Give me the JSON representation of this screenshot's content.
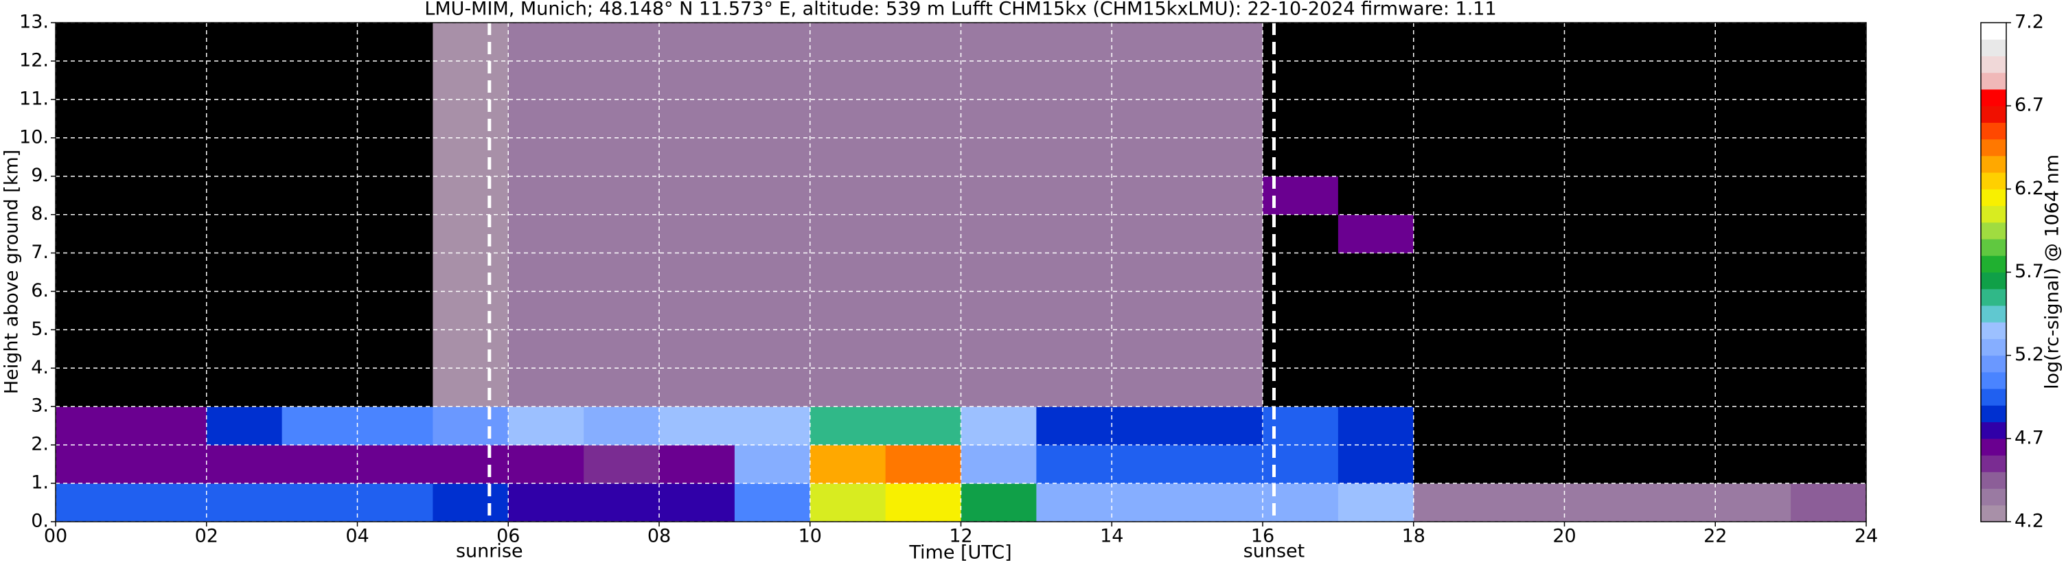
{
  "chart_data": {
    "type": "heatmap",
    "title": "LMU-MIM, Munich; 48.148° N 11.573° E, altitude: 539 m    Lufft CHM15kx (CHM15kxLMU): 22-10-2024    firmware: 1.11",
    "x_label": "Time [UTC]",
    "y_label": "Height above ground [km]",
    "x": [
      0,
      1,
      2,
      3,
      4,
      5,
      6,
      7,
      8,
      9,
      10,
      11,
      12,
      13,
      14,
      15,
      16,
      17,
      18,
      19,
      20,
      21,
      22,
      23,
      24
    ],
    "y": [
      0,
      1,
      2,
      3,
      4,
      5,
      6,
      7,
      8,
      9,
      10,
      11,
      12,
      13
    ],
    "z": [
      [
        4.9,
        4.9,
        4.9,
        4.9,
        4.9,
        4.8,
        4.7,
        4.7,
        4.7,
        5.0,
        6.0,
        6.1,
        5.6,
        5.2,
        5.2,
        5.2,
        5.2,
        5.3,
        4.3,
        4.3,
        4.3,
        4.3,
        4.3,
        4.4
      ],
      [
        4.6,
        4.6,
        4.6,
        4.6,
        4.6,
        4.6,
        4.6,
        4.5,
        4.6,
        5.2,
        6.3,
        6.4,
        5.2,
        4.9,
        4.9,
        4.9,
        4.9,
        4.8,
        4.0,
        4.0,
        4.0,
        4.0,
        4.0,
        4.0
      ],
      [
        4.6,
        4.6,
        4.8,
        5.0,
        5.0,
        5.1,
        5.3,
        5.2,
        5.3,
        5.3,
        5.5,
        5.5,
        5.3,
        4.8,
        4.8,
        4.8,
        4.9,
        4.8,
        4.0,
        4.0,
        4.0,
        4.0,
        4.0,
        4.0
      ],
      [
        4.0,
        4.0,
        4.1,
        4.1,
        4.1,
        4.2,
        4.3,
        4.3,
        4.3,
        4.3,
        4.3,
        4.3,
        4.3,
        4.3,
        4.3,
        4.3,
        4.1,
        4.1,
        4.0,
        4.0,
        4.0,
        4.0,
        4.0,
        4.0
      ],
      [
        4.0,
        4.0,
        4.1,
        4.1,
        4.1,
        4.2,
        4.3,
        4.3,
        4.3,
        4.3,
        4.3,
        4.3,
        4.3,
        4.3,
        4.3,
        4.3,
        4.1,
        4.0,
        4.0,
        4.0,
        4.0,
        4.0,
        4.0,
        4.0
      ],
      [
        4.0,
        4.0,
        4.1,
        4.1,
        4.1,
        4.2,
        4.3,
        4.3,
        4.3,
        4.3,
        4.3,
        4.3,
        4.3,
        4.3,
        4.3,
        4.3,
        4.1,
        4.0,
        4.0,
        4.0,
        4.0,
        4.0,
        4.0,
        4.0
      ],
      [
        4.0,
        4.0,
        4.1,
        4.1,
        4.1,
        4.2,
        4.3,
        4.3,
        4.3,
        4.3,
        4.3,
        4.3,
        4.3,
        4.3,
        4.3,
        4.3,
        4.1,
        4.0,
        4.0,
        4.0,
        4.0,
        4.0,
        4.0,
        4.0
      ],
      [
        4.0,
        4.0,
        4.1,
        4.1,
        4.1,
        4.2,
        4.3,
        4.3,
        4.3,
        4.3,
        4.3,
        4.3,
        4.3,
        4.3,
        4.3,
        4.3,
        4.1,
        4.6,
        4.0,
        4.0,
        4.0,
        4.0,
        4.0,
        4.0
      ],
      [
        4.0,
        4.0,
        4.1,
        4.1,
        4.1,
        4.2,
        4.3,
        4.3,
        4.3,
        4.3,
        4.3,
        4.3,
        4.3,
        4.3,
        4.3,
        4.3,
        4.6,
        4.1,
        4.0,
        4.0,
        4.0,
        4.0,
        4.0,
        4.0
      ],
      [
        4.0,
        4.0,
        4.1,
        4.1,
        4.1,
        4.2,
        4.3,
        4.3,
        4.3,
        4.3,
        4.3,
        4.3,
        4.3,
        4.3,
        4.3,
        4.3,
        4.1,
        4.0,
        4.0,
        4.0,
        4.0,
        4.0,
        4.0,
        4.0
      ],
      [
        4.0,
        4.0,
        4.1,
        4.1,
        4.1,
        4.2,
        4.3,
        4.3,
        4.3,
        4.3,
        4.3,
        4.3,
        4.3,
        4.3,
        4.3,
        4.3,
        4.1,
        4.0,
        4.0,
        4.0,
        4.0,
        4.0,
        4.0,
        4.0
      ],
      [
        4.0,
        4.0,
        4.1,
        4.1,
        4.1,
        4.2,
        4.3,
        4.3,
        4.3,
        4.3,
        4.3,
        4.3,
        4.3,
        4.3,
        4.3,
        4.3,
        4.1,
        4.0,
        4.0,
        4.0,
        4.0,
        4.0,
        4.0,
        4.0
      ],
      [
        4.0,
        4.0,
        4.1,
        4.1,
        4.1,
        4.2,
        4.3,
        4.3,
        4.3,
        4.3,
        4.3,
        4.3,
        4.3,
        4.3,
        4.3,
        4.3,
        4.1,
        4.0,
        4.0,
        4.0,
        4.0,
        4.0,
        4.0,
        4.0
      ]
    ],
    "xlim": [
      0,
      24
    ],
    "ylim": [
      0,
      13
    ],
    "xticks": [
      {
        "value": 0,
        "label": "00"
      },
      {
        "value": 2,
        "label": "02"
      },
      {
        "value": 4,
        "label": "04"
      },
      {
        "value": 6,
        "label": "06"
      },
      {
        "value": 8,
        "label": "08"
      },
      10,
      12,
      14,
      16,
      18,
      20,
      22,
      24
    ],
    "yticks": [
      {
        "value": 0,
        "label": "0."
      },
      {
        "value": 1,
        "label": "1."
      },
      {
        "value": 2,
        "label": "2."
      },
      {
        "value": 3,
        "label": "3."
      },
      {
        "value": 4,
        "label": "4."
      },
      {
        "value": 5,
        "label": "5."
      },
      {
        "value": 6,
        "label": "6."
      },
      {
        "value": 7,
        "label": "7."
      },
      {
        "value": 8,
        "label": "8."
      },
      {
        "value": 9,
        "label": "9."
      },
      {
        "value": 10,
        "label": "10."
      },
      {
        "value": 11,
        "label": "11."
      },
      {
        "value": 12,
        "label": "12."
      },
      {
        "value": 13,
        "label": "13."
      }
    ],
    "grid": true,
    "annotations": [
      {
        "x": 5.75,
        "label": "sunrise"
      },
      {
        "x": 16.15,
        "label": "sunset"
      }
    ],
    "colorbar": {
      "label": "log(rc-signal) @ 1064 nm",
      "lim": [
        4.2,
        7.2
      ],
      "ticks": [
        4.2,
        4.7,
        5.2,
        5.7,
        6.2,
        6.7,
        7.2
      ],
      "under_color": "#000000",
      "colors": [
        "#a890a8",
        "#9a7aa2",
        "#8c5e98",
        "#7a2c92",
        "#6a0090",
        "#3000a8",
        "#0030d0",
        "#2060f0",
        "#4a84ff",
        "#6a98ff",
        "#86aeff",
        "#9cc0ff",
        "#60c8d0",
        "#30b888",
        "#10a048",
        "#20b030",
        "#60c840",
        "#a0dc40",
        "#d8ec20",
        "#f8f000",
        "#ffd000",
        "#ffa800",
        "#ff7800",
        "#ff4800",
        "#f01000",
        "#ff0000",
        "#f0b8b8",
        "#f0d8d8",
        "#e8e8e8",
        "#ffffff"
      ]
    }
  }
}
